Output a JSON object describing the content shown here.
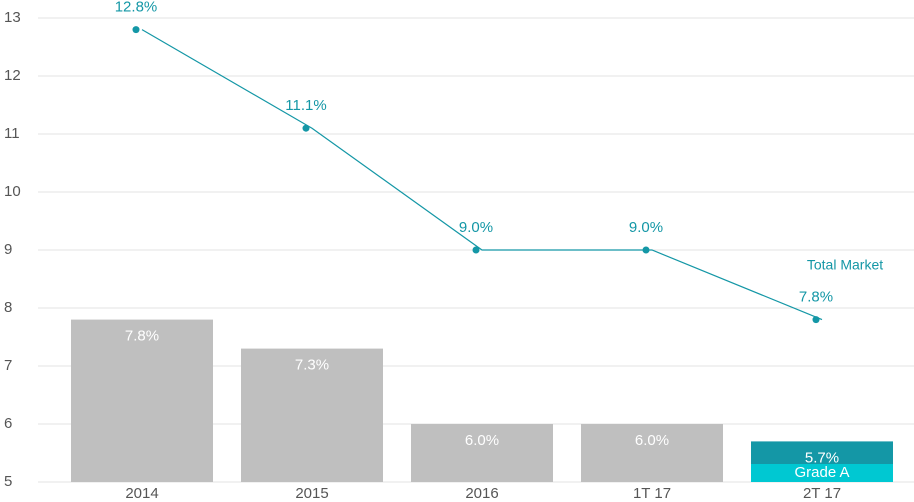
{
  "chart_data": {
    "type": "bar",
    "categories": [
      "2014",
      "2015",
      "2016",
      "1T 17",
      "2T 17"
    ],
    "ylim": [
      5,
      13
    ],
    "yticks": [
      5,
      6,
      7,
      8,
      9,
      10,
      11,
      12,
      13
    ],
    "grid": true,
    "series": [
      {
        "type": "bar",
        "colors": [
          "#bfbfbf",
          "#bfbfbf",
          "#bfbfbf",
          "#bfbfbf",
          "#1497a6"
        ],
        "values": [
          7.8,
          7.3,
          6.0,
          6.0,
          5.7
        ],
        "value_labels": [
          "7.8%",
          "7.3%",
          "6.0%",
          "6.0%",
          "5.7%"
        ]
      },
      {
        "type": "line",
        "name": "Total Market",
        "color": "#1497a6",
        "values": [
          12.8,
          11.1,
          9.0,
          9.0,
          7.8
        ],
        "value_labels": [
          "12.8%",
          "11.1%",
          "9.0%",
          "9.0%",
          "7.8%"
        ]
      }
    ],
    "annotations": [
      {
        "text": "Grade A",
        "category": 4,
        "color": "#00c8d2"
      }
    ]
  }
}
